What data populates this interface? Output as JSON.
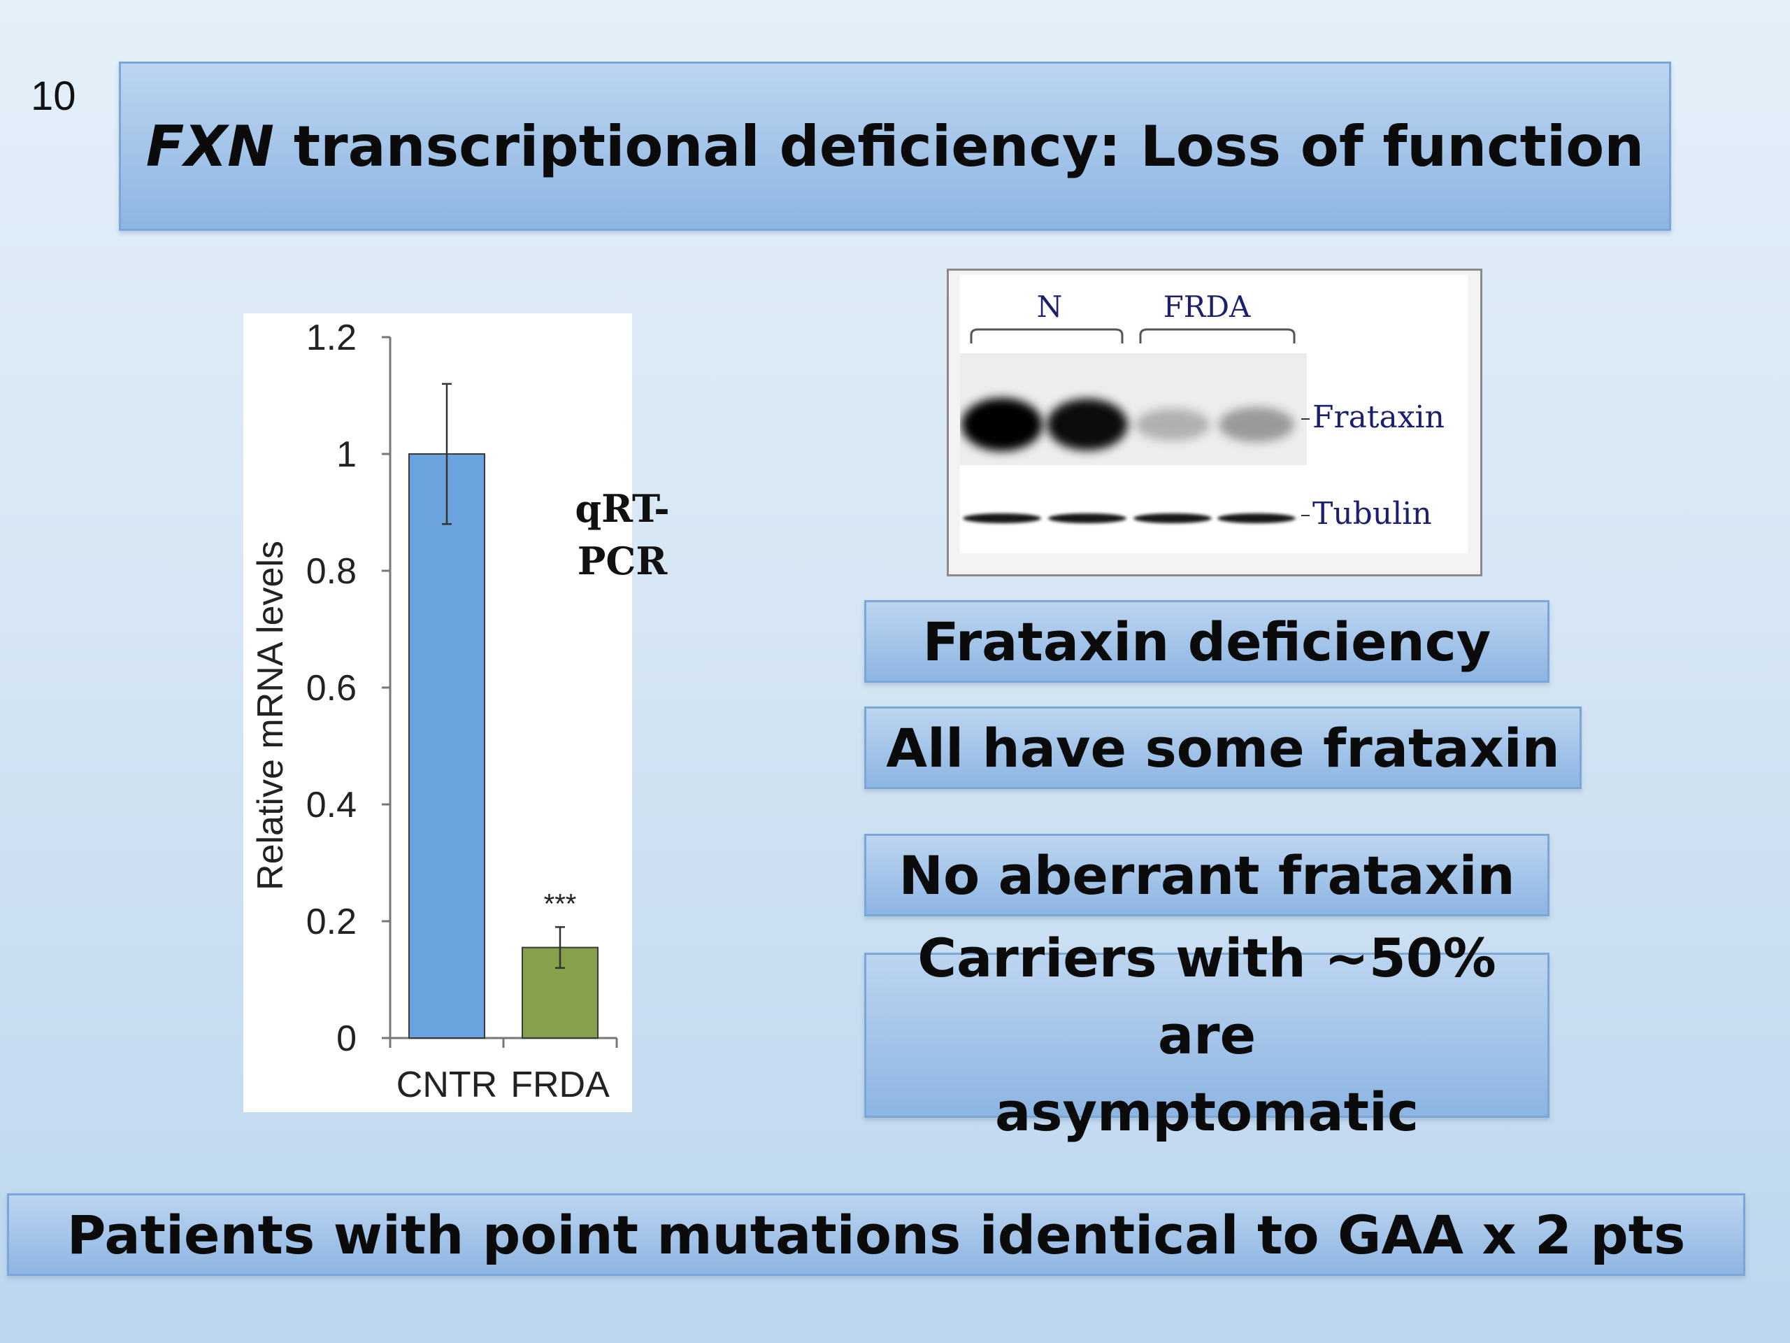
{
  "slide": {
    "number": "10",
    "title_italic": "FXN",
    "title_rest": " transcriptional deficiency: Loss of function"
  },
  "qpcr_label": {
    "line1": "qRT-",
    "line2": "PCR"
  },
  "chart_data": {
    "type": "bar",
    "categories": [
      "CNTR",
      "FRDA"
    ],
    "values": [
      1.0,
      0.155
    ],
    "errors": [
      0.12,
      0.035
    ],
    "colors": [
      "#6aa3de",
      "#86a04b"
    ],
    "ylabel": "Relative mRNA levels",
    "xlabel": "",
    "ylim": [
      0,
      1.2
    ],
    "yticks": [
      0,
      0.2,
      0.4,
      0.6,
      0.8,
      1,
      1.2
    ],
    "ytick_labels": [
      "0",
      "0.2",
      "0.4",
      "0.6",
      "0.8",
      "1",
      "1.2"
    ],
    "annotations": [
      "",
      "***"
    ]
  },
  "western_blot": {
    "group_labels": [
      "N",
      "FRDA"
    ],
    "band_labels": [
      "Frataxin",
      "Tubulin"
    ],
    "frataxin_intensity": [
      1.0,
      0.95,
      0.25,
      0.35
    ],
    "tubulin_intensity": [
      1.0,
      1.0,
      1.0,
      1.0
    ],
    "label_color": "#1b1f6e"
  },
  "boxes": {
    "frataxin_deficiency": "Frataxin deficiency",
    "all_have_some": "All have some frataxin",
    "no_aberrant": "No aberrant frataxin",
    "carriers_line1": "Carriers with ~50% are",
    "carriers_line2": "asymptomatic",
    "point_mutations": "Patients with point mutations identical to GAA x 2 pts"
  },
  "colors": {
    "box_top": "#bcd5f0",
    "box_bottom": "#8db5e2",
    "box_border": "#7aa6d8"
  }
}
